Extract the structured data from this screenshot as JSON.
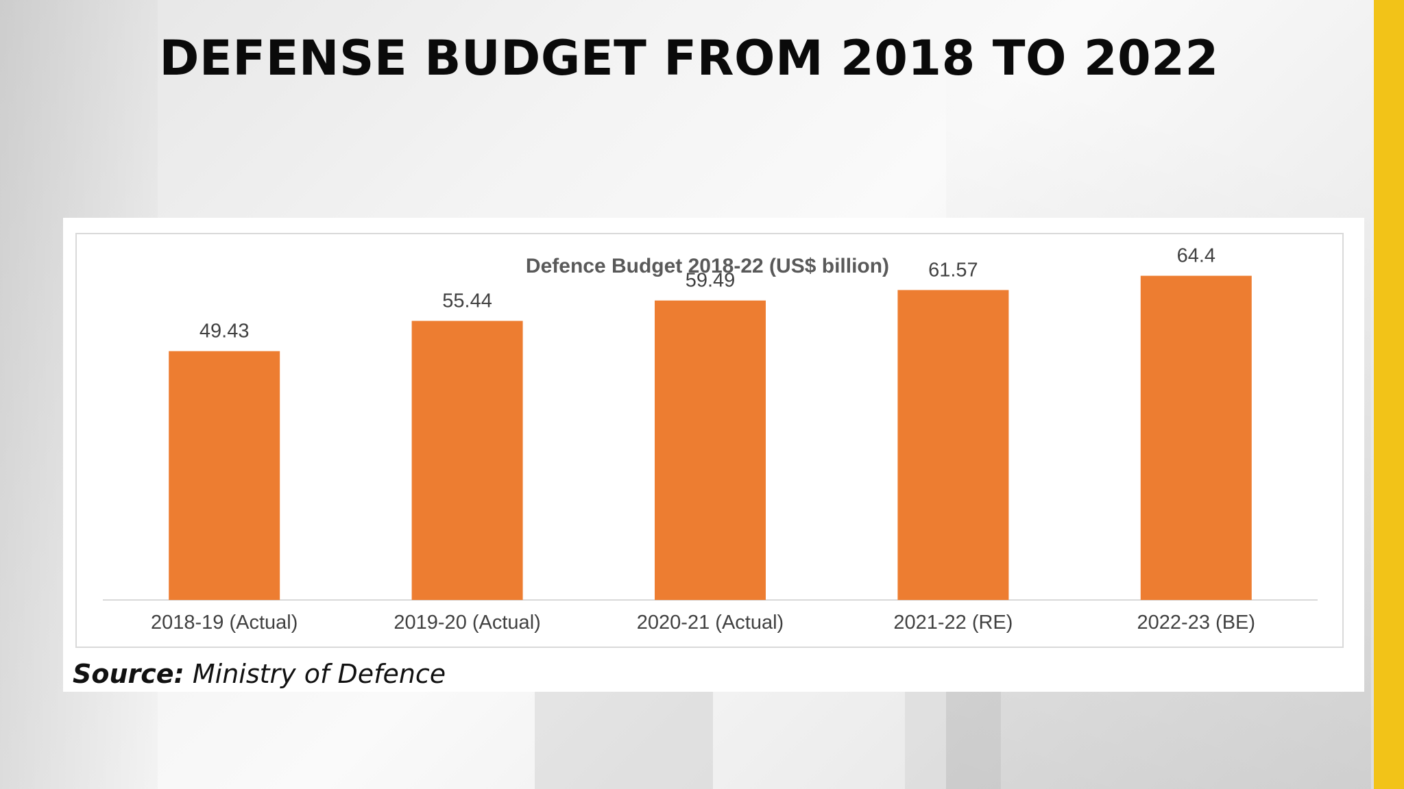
{
  "page": {
    "title": "DEFENSE BUDGET FROM 2018 TO 2022",
    "source_label": "Source:",
    "source_text": "Ministry of Defence",
    "accent_color": "#f2c318"
  },
  "chart_data": {
    "type": "bar",
    "title": "Defence Budget 2018-22 (US$ billion)",
    "categories": [
      "2018-19 (Actual)",
      "2019-20 (Actual)",
      "2020-21 (Actual)",
      "2021-22 (RE)",
      "2022-23 (BE)"
    ],
    "values": [
      49.43,
      55.44,
      59.49,
      61.57,
      64.4
    ],
    "value_labels": [
      "49.43",
      "55.44",
      "59.49",
      "61.57",
      "64.4"
    ],
    "xlabel": "",
    "ylabel": "",
    "ylim": [
      0,
      70
    ],
    "grid": false,
    "legend": "none",
    "bar_color": "#ed7d31"
  }
}
